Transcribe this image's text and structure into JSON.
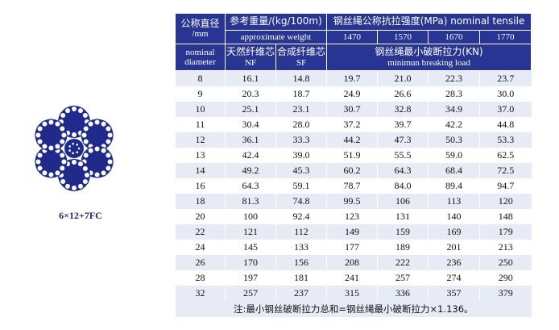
{
  "header": {
    "diameter_zh": "公称直径",
    "diameter_unit": "/mm",
    "diameter_en": "nominal diameter",
    "weight_zh": "参考重量/(kg/100m)",
    "weight_en": "approximate weight",
    "nf_zh": "天然纤维芯",
    "nf": "NF",
    "sf_zh": "合成纤维芯",
    "sf": "SF",
    "strength": "钢丝绳公称抗拉强度(MPa) nominal tensile",
    "grades": [
      "1470",
      "1570",
      "1670",
      "1770"
    ],
    "breaking_zh": "钢丝绳最小破断拉力(KN)",
    "breaking_en": "minimun breaking load"
  },
  "rows": [
    [
      "8",
      "16.1",
      "14.8",
      "19.7",
      "21.0",
      "22.3",
      "23.7"
    ],
    [
      "9",
      "20.3",
      "18.7",
      "24.9",
      "26.6",
      "28.3",
      "30.0"
    ],
    [
      "10",
      "25.1",
      "23.1",
      "30.7",
      "32.8",
      "34.9",
      "37.0"
    ],
    [
      "11",
      "30.4",
      "28.0",
      "37.2",
      "39.7",
      "42.2",
      "44.8"
    ],
    [
      "12",
      "36.1",
      "33.3",
      "44.2",
      "47.3",
      "50.3",
      "53.3"
    ],
    [
      "13",
      "42.4",
      "39.0",
      "51.9",
      "55.5",
      "59.0",
      "62.5"
    ],
    [
      "14",
      "49.2",
      "45.3",
      "60.2",
      "64.3",
      "68.4",
      "72.5"
    ],
    [
      "16",
      "64.3",
      "59.1",
      "78.7",
      "84.0",
      "89.4",
      "94.7"
    ],
    [
      "18",
      "81.3",
      "74.8",
      "99.5",
      "106",
      "113",
      "120"
    ],
    [
      "20",
      "100",
      "92.4",
      "123",
      "131",
      "140",
      "148"
    ],
    [
      "22",
      "121",
      "112",
      "149",
      "159",
      "169",
      "179"
    ],
    [
      "24",
      "145",
      "133",
      "177",
      "189",
      "201",
      "213"
    ],
    [
      "26",
      "170",
      "156",
      "208",
      "222",
      "236",
      "250"
    ],
    [
      "28",
      "197",
      "181",
      "241",
      "257",
      "274",
      "290"
    ],
    [
      "32",
      "257",
      "237",
      "315",
      "336",
      "357",
      "379"
    ]
  ],
  "note": "注:最小钢丝破断拉力总和=钢丝绳最小破断拉力×1.136。",
  "figure": {
    "caption": "6×12+7FC",
    "icon": "wire-rope-cross-section-icon",
    "color": "#1f2a8a"
  }
}
